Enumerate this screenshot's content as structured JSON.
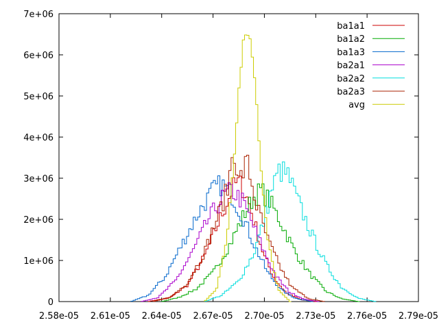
{
  "chart_data": {
    "type": "histogram-step",
    "title": "",
    "xlabel": "",
    "ylabel": "",
    "xlim": [
      2.58e-05,
      2.79e-05
    ],
    "ylim": [
      0,
      7000000
    ],
    "x_ticks": [
      "2.58e-05",
      "2.61e-05",
      "2.64e-05",
      "2.67e-05",
      "2.70e-05",
      "2.73e-05",
      "2.76e-05",
      "2.79e-05"
    ],
    "y_ticks": [
      "0",
      "1e+06",
      "2e+06",
      "3e+06",
      "4e+06",
      "5e+06",
      "6e+06",
      "7e+06"
    ],
    "grid": false,
    "legend_position": "top-right",
    "series": [
      {
        "name": "ba1a1",
        "color": "#cc0000",
        "points": [
          [
            2.632e-05,
            0
          ],
          [
            2.645e-05,
            100000
          ],
          [
            2.655e-05,
            400000
          ],
          [
            2.665e-05,
            1100000
          ],
          [
            2.674e-05,
            2000000
          ],
          [
            2.681e-05,
            2700000
          ],
          [
            2.684e-05,
            2900000
          ],
          [
            2.687e-05,
            2800000
          ],
          [
            2.691e-05,
            2400000
          ],
          [
            2.695e-05,
            1800000
          ],
          [
            2.7e-05,
            1100000
          ],
          [
            2.706e-05,
            550000
          ],
          [
            2.713e-05,
            200000
          ],
          [
            2.722e-05,
            40000
          ],
          [
            2.73e-05,
            0
          ]
        ]
      },
      {
        "name": "ba1a2",
        "color": "#00aa00",
        "points": [
          [
            2.64e-05,
            0
          ],
          [
            2.65e-05,
            100000
          ],
          [
            2.66e-05,
            300000
          ],
          [
            2.67e-05,
            700000
          ],
          [
            2.68e-05,
            1400000
          ],
          [
            2.688e-05,
            2100000
          ],
          [
            2.694e-05,
            2550000
          ],
          [
            2.698e-05,
            2700000
          ],
          [
            2.703e-05,
            2450000
          ],
          [
            2.71e-05,
            1900000
          ],
          [
            2.718e-05,
            1200000
          ],
          [
            2.727e-05,
            650000
          ],
          [
            2.736e-05,
            250000
          ],
          [
            2.745e-05,
            70000
          ],
          [
            2.755e-05,
            0
          ]
        ]
      },
      {
        "name": "ba1a3",
        "color": "#0066cc",
        "points": [
          [
            2.622e-05,
            0
          ],
          [
            2.632e-05,
            150000
          ],
          [
            2.642e-05,
            600000
          ],
          [
            2.652e-05,
            1400000
          ],
          [
            2.662e-05,
            2200000
          ],
          [
            2.67e-05,
            2700000
          ],
          [
            2.675e-05,
            2850000
          ],
          [
            2.681e-05,
            2600000
          ],
          [
            2.688e-05,
            2000000
          ],
          [
            2.695e-05,
            1300000
          ],
          [
            2.702e-05,
            700000
          ],
          [
            2.71e-05,
            280000
          ],
          [
            2.718e-05,
            80000
          ],
          [
            2.728e-05,
            0
          ]
        ]
      },
      {
        "name": "ba2a1",
        "color": "#aa00cc",
        "points": [
          [
            2.628e-05,
            0
          ],
          [
            2.638e-05,
            100000
          ],
          [
            2.648e-05,
            500000
          ],
          [
            2.658e-05,
            1200000
          ],
          [
            2.668e-05,
            2050000
          ],
          [
            2.676e-05,
            2550000
          ],
          [
            2.681e-05,
            2700000
          ],
          [
            2.687e-05,
            2450000
          ],
          [
            2.693e-05,
            1900000
          ],
          [
            2.7e-05,
            1200000
          ],
          [
            2.707e-05,
            600000
          ],
          [
            2.715e-05,
            220000
          ],
          [
            2.724e-05,
            50000
          ],
          [
            2.732e-05,
            0
          ]
        ]
      },
      {
        "name": "ba2a2",
        "color": "#00dddd",
        "points": [
          [
            2.665e-05,
            0
          ],
          [
            2.675e-05,
            150000
          ],
          [
            2.685e-05,
            500000
          ],
          [
            2.694e-05,
            1200000
          ],
          [
            2.7e-05,
            2000000
          ],
          [
            2.704e-05,
            2700000
          ],
          [
            2.709e-05,
            3200000
          ],
          [
            2.714e-05,
            3050000
          ],
          [
            2.72e-05,
            2400000
          ],
          [
            2.728e-05,
            1600000
          ],
          [
            2.736e-05,
            900000
          ],
          [
            2.745e-05,
            350000
          ],
          [
            2.755e-05,
            80000
          ],
          [
            2.765e-05,
            0
          ]
        ]
      },
      {
        "name": "ba2a3",
        "color": "#aa2200",
        "points": [
          [
            2.635e-05,
            0
          ],
          [
            2.645e-05,
            100000
          ],
          [
            2.655e-05,
            450000
          ],
          [
            2.665e-05,
            1200000
          ],
          [
            2.673e-05,
            2100000
          ],
          [
            2.679e-05,
            2800000
          ],
          [
            2.682e-05,
            3850000
          ],
          [
            2.685e-05,
            2900000
          ],
          [
            2.69e-05,
            3400000
          ],
          [
            2.695e-05,
            2400000
          ],
          [
            2.702e-05,
            1500000
          ],
          [
            2.709e-05,
            850000
          ],
          [
            2.716e-05,
            350000
          ],
          [
            2.726e-05,
            70000
          ],
          [
            2.735e-05,
            0
          ]
        ]
      },
      {
        "name": "avg",
        "color": "#cccc00",
        "points": [
          [
            2.665e-05,
            0
          ],
          [
            2.672e-05,
            300000
          ],
          [
            2.678e-05,
            1500000
          ],
          [
            2.682e-05,
            3300000
          ],
          [
            2.685e-05,
            5100000
          ],
          [
            2.688e-05,
            6300000
          ],
          [
            2.69e-05,
            6600000
          ],
          [
            2.692e-05,
            6300000
          ],
          [
            2.695e-05,
            5100000
          ],
          [
            2.698e-05,
            3300000
          ],
          [
            2.702e-05,
            1500000
          ],
          [
            2.708e-05,
            300000
          ],
          [
            2.715e-05,
            0
          ]
        ]
      }
    ]
  }
}
